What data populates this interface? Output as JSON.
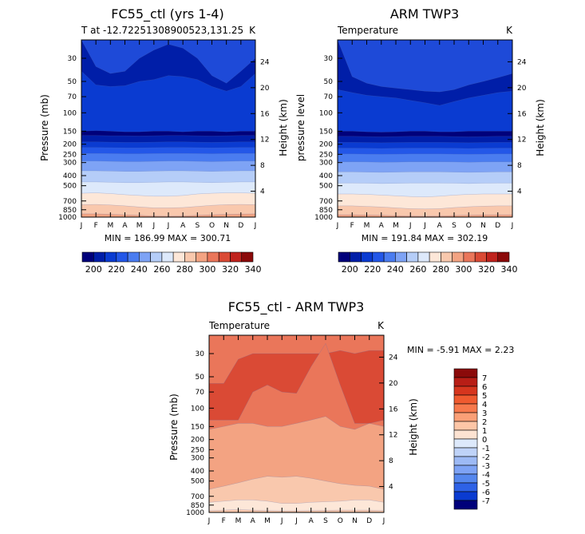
{
  "months": [
    "J",
    "F",
    "M",
    "A",
    "M",
    "J",
    "J",
    "A",
    "S",
    "O",
    "N",
    "D",
    "J"
  ],
  "pressure_ticks": [
    "30",
    "50",
    "70",
    "100",
    "150",
    "200",
    "250",
    "300",
    "400",
    "500",
    "700",
    "850",
    "1000"
  ],
  "pressure_values": [
    30,
    50,
    70,
    100,
    150,
    200,
    250,
    300,
    400,
    500,
    700,
    850,
    1000
  ],
  "height_ticks": [
    "4",
    "8",
    "12",
    "16",
    "20",
    "24"
  ],
  "height_values": [
    4,
    8,
    12,
    16,
    20,
    24
  ],
  "colors": {
    "warm9": [
      "#00007a",
      "#001ea8",
      "#0a3bd1",
      "#2357e8",
      "#4a7cf0",
      "#7ea3f5",
      "#b5cdf8",
      "#dde9fb",
      "#fde7d8",
      "#f9c8ad",
      "#f3a382",
      "#ea765a",
      "#da4a35",
      "#c0231d",
      "#8b0a0a"
    ]
  },
  "chart_data": [
    {
      "id": "fc55",
      "type": "heatmap",
      "title": "FC55_ctl (yrs 1-4)",
      "subtitle_left": "T at -12.72251308900523,131.25",
      "subtitle_right": "K",
      "ylabel": "Pressure (mb)",
      "ylabel_right": "Height (km)",
      "min_max": "MIN = 186.99 MAX = 300.71",
      "colorbar_labels": [
        "200",
        "220",
        "240",
        "260",
        "280",
        "300",
        "320",
        "340"
      ],
      "levels": [
        195,
        200,
        205,
        210,
        215,
        220,
        225,
        230,
        240,
        250,
        260,
        270,
        280,
        290,
        300
      ],
      "bands": [
        {
          "p": [
            20,
            36,
            42,
            40,
            30,
            25,
            22,
            24,
            30,
            44,
            52,
            40,
            30
          ],
          "c": 1
        },
        {
          "p": [
            40,
            54,
            56,
            55,
            50,
            48,
            44,
            45,
            48,
            56,
            62,
            56,
            42
          ],
          "c": 2
        },
        {
          "p": [
            150,
            148,
            150,
            152,
            152,
            150,
            150,
            152,
            150,
            150,
            152,
            150,
            150
          ],
          "c": 0
        },
        {
          "p": [
            165,
            165,
            166,
            166,
            167,
            166,
            165,
            165,
            166,
            167,
            166,
            165,
            165
          ],
          "c": 1
        },
        {
          "p": [
            190,
            190,
            191,
            192,
            192,
            191,
            190,
            190,
            191,
            192,
            191,
            190,
            190
          ],
          "c": 2
        },
        {
          "p": [
            215,
            215,
            216,
            217,
            217,
            216,
            215,
            215,
            216,
            217,
            216,
            215,
            215
          ],
          "c": 3
        },
        {
          "p": [
            245,
            245,
            246,
            247,
            247,
            246,
            245,
            245,
            246,
            247,
            246,
            245,
            245
          ],
          "c": 4
        },
        {
          "p": [
            290,
            290,
            292,
            294,
            294,
            292,
            290,
            290,
            292,
            294,
            292,
            290,
            290
          ],
          "c": 5
        },
        {
          "p": [
            360,
            360,
            362,
            364,
            364,
            362,
            360,
            360,
            362,
            364,
            362,
            360,
            360
          ],
          "c": 6
        },
        {
          "p": [
            460,
            460,
            463,
            467,
            467,
            463,
            460,
            460,
            463,
            467,
            463,
            460,
            460
          ],
          "c": 7
        },
        {
          "p": [
            590,
            585,
            595,
            610,
            620,
            630,
            630,
            620,
            600,
            590,
            585,
            585,
            590
          ],
          "c": 8
        },
        {
          "p": [
            760,
            755,
            765,
            780,
            800,
            815,
            815,
            810,
            790,
            770,
            760,
            755,
            760
          ],
          "c": 9
        },
        {
          "p": [
            930,
            930,
            940,
            950,
            960,
            975,
            980,
            975,
            960,
            950,
            940,
            935,
            930
          ],
          "c": 10
        }
      ]
    },
    {
      "id": "arm",
      "type": "heatmap",
      "title": "ARM TWP3",
      "subtitle_left": "Temperature",
      "subtitle_right": "K",
      "ylabel": "pressure level",
      "ylabel_right": "Height (km)",
      "min_max": "MIN = 191.84 MAX = 302.19",
      "colorbar_labels": [
        "200",
        "220",
        "240",
        "260",
        "280",
        "300",
        "320",
        "340"
      ],
      "levels": [
        195,
        200,
        205,
        210,
        215,
        220,
        225,
        230,
        240,
        250,
        260,
        270,
        280,
        290,
        300
      ],
      "bands": [
        {
          "p": [
            20,
            45,
            52,
            56,
            58,
            60,
            62,
            63,
            60,
            54,
            50,
            46,
            42
          ],
          "c": 1
        },
        {
          "p": [
            60,
            64,
            68,
            70,
            72,
            76,
            80,
            85,
            78,
            72,
            68,
            64,
            62
          ],
          "c": 2
        },
        {
          "p": [
            150,
            150,
            152,
            153,
            152,
            150,
            150,
            152,
            152,
            150,
            150,
            150,
            150
          ],
          "c": 0
        },
        {
          "p": [
            168,
            168,
            169,
            170,
            169,
            168,
            168,
            168,
            169,
            170,
            169,
            168,
            168
          ],
          "c": 1
        },
        {
          "p": [
            192,
            192,
            193,
            194,
            193,
            192,
            192,
            192,
            193,
            194,
            193,
            192,
            192
          ],
          "c": 2
        },
        {
          "p": [
            218,
            218,
            219,
            220,
            219,
            218,
            218,
            218,
            219,
            220,
            219,
            218,
            218
          ],
          "c": 3
        },
        {
          "p": [
            248,
            248,
            249,
            250,
            249,
            248,
            248,
            248,
            249,
            250,
            249,
            248,
            248
          ],
          "c": 4
        },
        {
          "p": [
            295,
            295,
            296,
            298,
            297,
            295,
            295,
            295,
            296,
            298,
            296,
            295,
            295
          ],
          "c": 5
        },
        {
          "p": [
            368,
            368,
            370,
            372,
            370,
            368,
            368,
            368,
            370,
            372,
            370,
            368,
            368
          ],
          "c": 6
        },
        {
          "p": [
            470,
            470,
            472,
            476,
            474,
            470,
            470,
            470,
            472,
            476,
            472,
            470,
            470
          ],
          "c": 7
        },
        {
          "p": [
            600,
            600,
            605,
            615,
            625,
            635,
            640,
            630,
            615,
            605,
            600,
            600,
            600
          ],
          "c": 8
        },
        {
          "p": [
            780,
            780,
            790,
            800,
            815,
            830,
            835,
            830,
            810,
            795,
            785,
            780,
            780
          ],
          "c": 9
        },
        {
          "p": [
            950,
            950,
            955,
            960,
            968,
            975,
            980,
            975,
            965,
            958,
            952,
            950,
            950
          ],
          "c": 10
        }
      ]
    },
    {
      "id": "diff",
      "type": "heatmap",
      "title": "FC55_ctl - ARM TWP3",
      "subtitle_left": "Temperature",
      "subtitle_right": "K",
      "ylabel": "Pressure (mb)",
      "ylabel_right": "Height (km)",
      "min_max": "MIN = -5.91 MAX = 2.23",
      "colorbar_labels": [
        "7",
        "6",
        "5",
        "4",
        "3",
        "2",
        "1",
        "0",
        "-1",
        "-2",
        "-3",
        "-4",
        "-5",
        "-6",
        "-7"
      ],
      "levels": [
        -7,
        -6,
        -5,
        -4,
        -3,
        -2,
        -1,
        0,
        1,
        2,
        3,
        4,
        5,
        6,
        7
      ],
      "bands": [
        {
          "p": [
            20,
            20,
            20,
            20,
            20,
            20,
            20,
            20,
            20,
            20,
            20,
            20,
            20
          ],
          "c": 11
        },
        {
          "p": [
            58,
            58,
            34,
            30,
            30,
            30,
            30,
            30,
            30,
            28,
            30,
            28,
            28
          ],
          "c": 12
        },
        {
          "p": [
            130,
            130,
            130,
            70,
            60,
            70,
            72,
            40,
            24,
            60,
            140,
            140,
            130
          ],
          "c": 11
        },
        {
          "p": [
            160,
            150,
            140,
            140,
            150,
            150,
            140,
            130,
            120,
            150,
            160,
            140,
            150
          ],
          "c": 10
        },
        {
          "p": [
            600,
            560,
            520,
            480,
            450,
            460,
            450,
            470,
            500,
            530,
            550,
            560,
            600
          ],
          "c": 9
        },
        {
          "p": [
            800,
            780,
            760,
            760,
            780,
            820,
            820,
            800,
            790,
            780,
            760,
            760,
            800
          ],
          "c": 8
        },
        {
          "p": [
            960,
            950,
            940,
            950,
            960,
            965,
            965,
            960,
            955,
            950,
            950,
            950,
            960
          ],
          "c": 9
        }
      ]
    }
  ]
}
